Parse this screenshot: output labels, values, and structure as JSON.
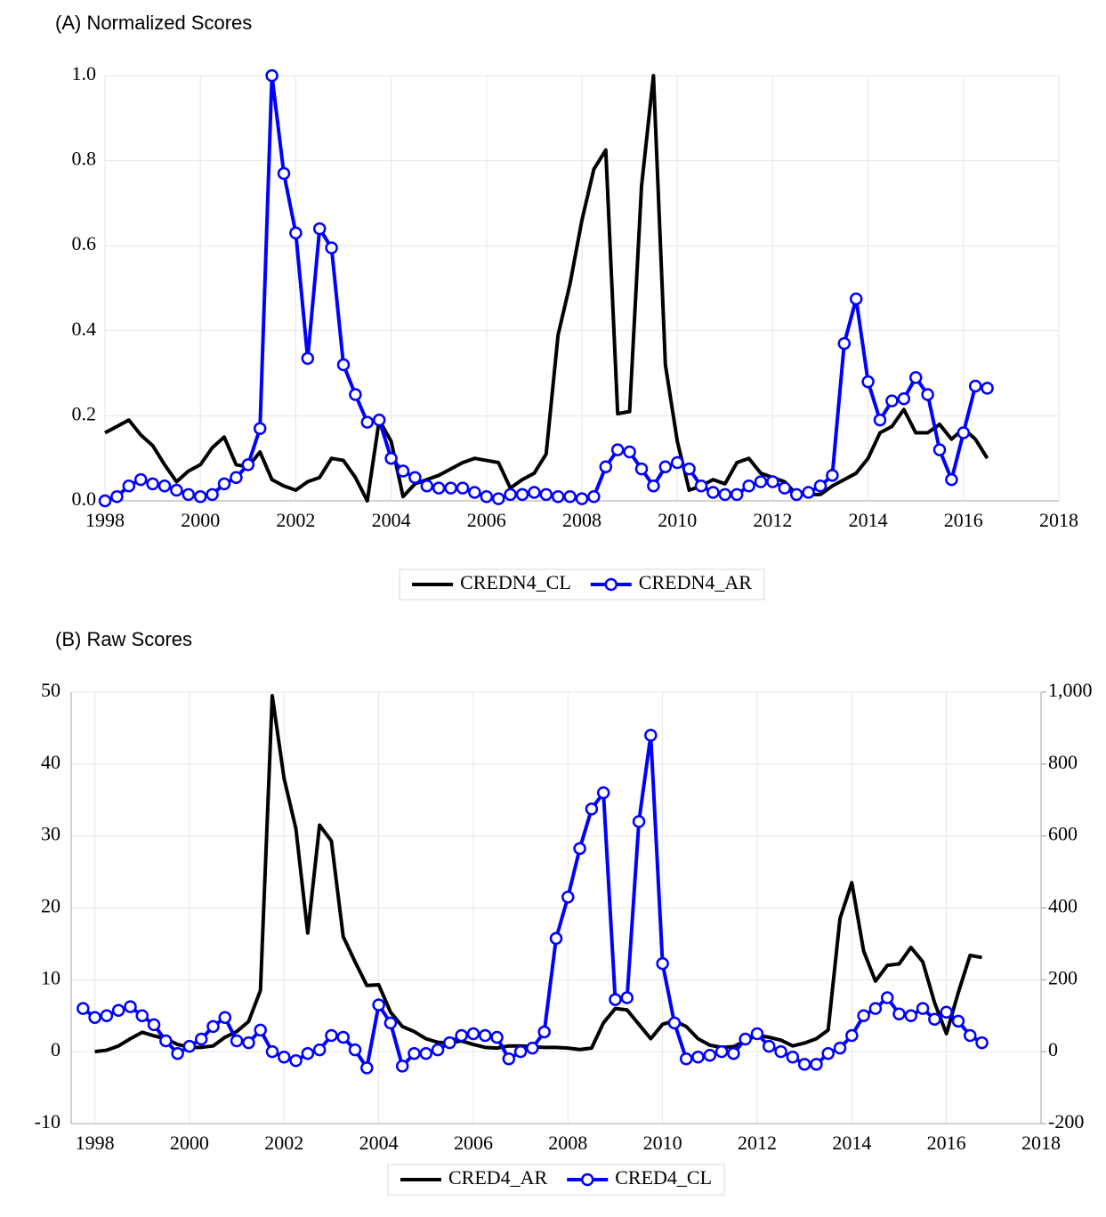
{
  "chart_data": [
    {
      "type": "line",
      "title": "(A)  Normalized Scores",
      "grid": true,
      "legend": "bottom",
      "xlim": [
        1998,
        2018
      ],
      "xticks": [
        1998,
        2000,
        2002,
        2004,
        2006,
        2008,
        2010,
        2012,
        2014,
        2016,
        2018
      ],
      "ylim": [
        0,
        1
      ],
      "yticks": [
        {
          "value": 0,
          "label": "0.0"
        },
        0.2,
        0.4,
        0.6,
        0.8,
        {
          "value": 1,
          "label": "1.0"
        }
      ],
      "x": [
        1998,
        1998.25,
        1998.5,
        1998.75,
        1999,
        1999.25,
        1999.5,
        1999.75,
        2000,
        2000.25,
        2000.5,
        2000.75,
        2001,
        2001.25,
        2001.5,
        2001.75,
        2002,
        2002.25,
        2002.5,
        2002.75,
        2003,
        2003.25,
        2003.5,
        2003.75,
        2004,
        2004.25,
        2004.5,
        2004.75,
        2005,
        2005.25,
        2005.5,
        2005.75,
        2006,
        2006.25,
        2006.5,
        2006.75,
        2007,
        2007.25,
        2007.5,
        2007.75,
        2008,
        2008.25,
        2008.5,
        2008.75,
        2009,
        2009.25,
        2009.5,
        2009.75,
        2010,
        2010.25,
        2010.5,
        2010.75,
        2011,
        2011.25,
        2011.5,
        2011.75,
        2012,
        2012.25,
        2012.5,
        2012.75,
        2013,
        2013.25,
        2013.5,
        2013.75,
        2014,
        2014.25,
        2014.5,
        2014.75,
        2015,
        2015.25,
        2015.5,
        2015.75,
        2016,
        2016.25,
        2016.5
      ],
      "series": [
        {
          "name": "CREDN4_CL",
          "color": "#000000",
          "marker": "none",
          "values": [
            0.16,
            0.175,
            0.19,
            0.155,
            0.13,
            0.085,
            0.045,
            0.07,
            0.085,
            0.125,
            0.15,
            0.085,
            0.08,
            0.115,
            0.05,
            0.035,
            0.025,
            0.045,
            0.055,
            0.1,
            0.095,
            0.055,
            0.0,
            0.19,
            0.14,
            0.01,
            0.04,
            0.05,
            0.06,
            0.075,
            0.09,
            0.1,
            0.095,
            0.09,
            0.03,
            0.05,
            0.065,
            0.11,
            0.39,
            0.51,
            0.66,
            0.78,
            0.825,
            0.205,
            0.21,
            0.74,
            1.0,
            0.32,
            0.14,
            0.025,
            0.035,
            0.05,
            0.04,
            0.09,
            0.1,
            0.065,
            0.055,
            0.045,
            0.015,
            0.015,
            0.015,
            0.035,
            0.05,
            0.065,
            0.1,
            0.16,
            0.175,
            0.215,
            0.16,
            0.16,
            0.18,
            0.145,
            0.17,
            0.145,
            0.1
          ]
        },
        {
          "name": "CREDN4_AR",
          "color": "#0000ff",
          "marker": "circle",
          "values": [
            0,
            0.01,
            0.035,
            0.05,
            0.04,
            0.035,
            0.025,
            0.015,
            0.01,
            0.015,
            0.04,
            0.055,
            0.085,
            0.17,
            1.0,
            0.77,
            0.63,
            0.335,
            0.64,
            0.595,
            0.32,
            0.25,
            0.185,
            0.19,
            0.1,
            0.07,
            0.055,
            0.035,
            0.03,
            0.03,
            0.03,
            0.02,
            0.01,
            0.005,
            0.015,
            0.015,
            0.02,
            0.015,
            0.01,
            0.01,
            0.005,
            0.01,
            0.08,
            0.12,
            0.115,
            0.075,
            0.035,
            0.08,
            0.09,
            0.075,
            0.035,
            0.02,
            0.015,
            0.015,
            0.035,
            0.045,
            0.045,
            0.03,
            0.015,
            0.02,
            0.035,
            0.06,
            0.37,
            0.475,
            0.28,
            0.19,
            0.235,
            0.24,
            0.29,
            0.25,
            0.12,
            0.05,
            0.16,
            0.27,
            0.265
          ]
        }
      ]
    },
    {
      "type": "line",
      "title": "(B)  Raw Scores",
      "grid": true,
      "legend": "bottom",
      "xlim": [
        1997.5,
        2018
      ],
      "xticks": [
        1998,
        2000,
        2002,
        2004,
        2006,
        2008,
        2010,
        2012,
        2014,
        2016,
        2018
      ],
      "ylim": [
        -10,
        50
      ],
      "yticks": [
        -10,
        0,
        10,
        20,
        30,
        40,
        50
      ],
      "y2lim": [
        -200,
        1000
      ],
      "y2ticks": [
        -200,
        0,
        200,
        400,
        600,
        800,
        {
          "value": 1000,
          "label": "1,000"
        }
      ],
      "x": [
        1997.75,
        1998,
        1998.25,
        1998.5,
        1998.75,
        1999,
        1999.25,
        1999.5,
        1999.75,
        2000,
        2000.25,
        2000.5,
        2000.75,
        2001,
        2001.25,
        2001.5,
        2001.75,
        2002,
        2002.25,
        2002.5,
        2002.75,
        2003,
        2003.25,
        2003.5,
        2003.75,
        2004,
        2004.25,
        2004.5,
        2004.75,
        2005,
        2005.25,
        2005.5,
        2005.75,
        2006,
        2006.25,
        2006.5,
        2006.75,
        2007,
        2007.25,
        2007.5,
        2007.75,
        2008,
        2008.25,
        2008.5,
        2008.75,
        2009,
        2009.25,
        2009.5,
        2009.75,
        2010,
        2010.25,
        2010.5,
        2010.75,
        2011,
        2011.25,
        2011.5,
        2011.75,
        2012,
        2012.25,
        2012.5,
        2012.75,
        2013,
        2013.25,
        2013.5,
        2013.75,
        2014,
        2014.25,
        2014.5,
        2014.75,
        2015,
        2015.25,
        2015.5,
        2015.75,
        2016,
        2016.25,
        2016.5,
        2016.75
      ],
      "series": [
        {
          "name": "CRED4_AR",
          "color": "#000000",
          "marker": "none",
          "values": [
            null,
            0,
            0.2,
            0.8,
            1.8,
            2.7,
            2.2,
            1.8,
            1.0,
            0.6,
            0.6,
            0.8,
            2.0,
            2.8,
            4.2,
            8.5,
            49.5,
            38,
            31,
            16.5,
            31.5,
            29.3,
            16,
            12.5,
            9.2,
            9.3,
            5.5,
            3.5,
            2.8,
            1.8,
            1.3,
            1.2,
            1.5,
            1.0,
            0.6,
            0.5,
            0.8,
            0.8,
            0.7,
            0.6,
            0.6,
            0.5,
            0.3,
            0.5,
            4.0,
            6.0,
            5.8,
            3.8,
            1.8,
            3.8,
            4.3,
            3.5,
            1.8,
            0.9,
            0.6,
            0.7,
            1.5,
            2.3,
            2.0,
            1.6,
            0.8,
            1.2,
            1.8,
            3.0,
            18.5,
            23.5,
            14,
            9.8,
            12,
            12.2,
            14.5,
            12.5,
            6.8,
            2.5,
            8.2,
            13.4,
            13.1
          ]
        },
        {
          "name": "CRED4_CL",
          "color": "#0000ff",
          "marker": "circle",
          "axis": "y2",
          "values": [
            120,
            95,
            100,
            115,
            125,
            100,
            75,
            30,
            -5,
            15,
            35,
            70,
            95,
            30,
            25,
            60,
            0,
            -15,
            -25,
            -5,
            5,
            45,
            40,
            5,
            -45,
            130,
            80,
            -40,
            -5,
            -5,
            5,
            25,
            45,
            50,
            45,
            40,
            -20,
            0,
            10,
            55,
            315,
            430,
            565,
            675,
            720,
            145,
            150,
            640,
            880,
            245,
            80,
            -20,
            -15,
            -10,
            0,
            -5,
            35,
            50,
            15,
            0,
            -15,
            -35,
            -35,
            -5,
            10,
            45,
            100,
            120,
            150,
            105,
            100,
            120,
            90,
            110,
            85,
            45,
            25
          ]
        }
      ]
    }
  ]
}
